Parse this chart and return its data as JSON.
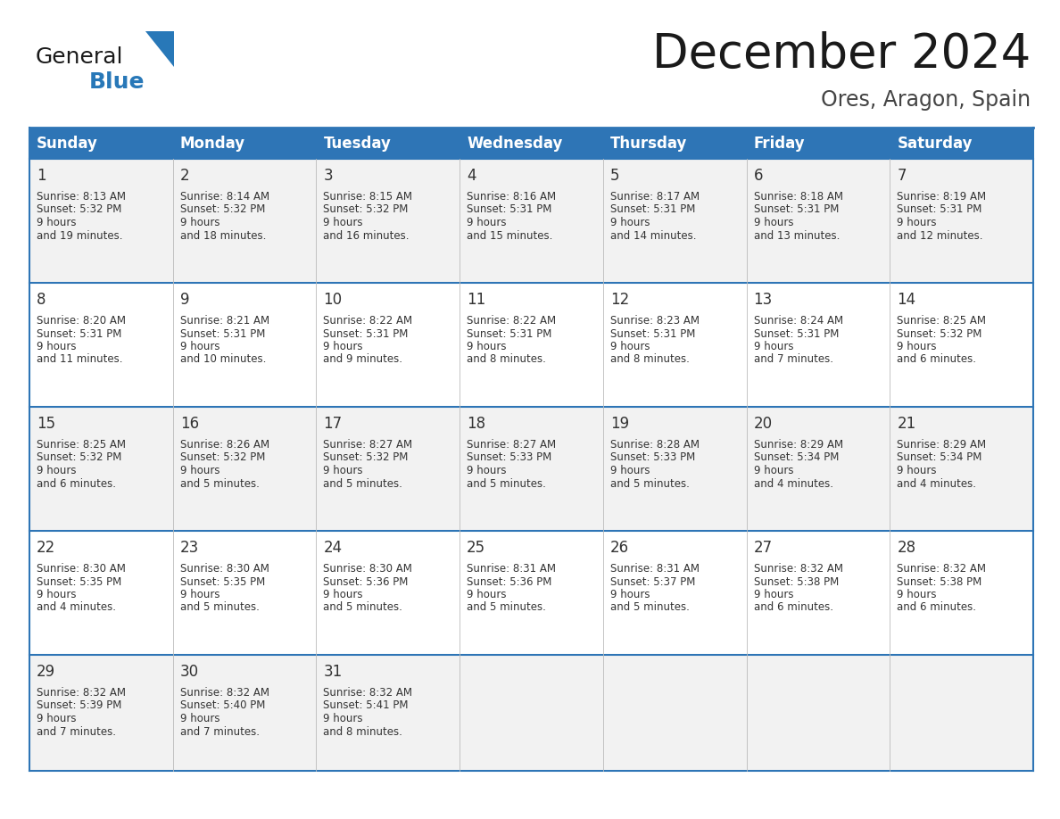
{
  "title": "December 2024",
  "subtitle": "Ores, Aragon, Spain",
  "days_of_week": [
    "Sunday",
    "Monday",
    "Tuesday",
    "Wednesday",
    "Thursday",
    "Friday",
    "Saturday"
  ],
  "header_bg": "#2E75B6",
  "header_text": "#FFFFFF",
  "cell_bg_white": "#FFFFFF",
  "cell_bg_gray": "#F2F2F2",
  "border_color": "#2E75B6",
  "border_light": "#BBBBBB",
  "text_color": "#222222",
  "calendar": [
    [
      {
        "day": 1,
        "sunrise": "8:13 AM",
        "sunset": "5:32 PM",
        "daylight": "9 hours and 19 minutes."
      },
      {
        "day": 2,
        "sunrise": "8:14 AM",
        "sunset": "5:32 PM",
        "daylight": "9 hours and 18 minutes."
      },
      {
        "day": 3,
        "sunrise": "8:15 AM",
        "sunset": "5:32 PM",
        "daylight": "9 hours and 16 minutes."
      },
      {
        "day": 4,
        "sunrise": "8:16 AM",
        "sunset": "5:31 PM",
        "daylight": "9 hours and 15 minutes."
      },
      {
        "day": 5,
        "sunrise": "8:17 AM",
        "sunset": "5:31 PM",
        "daylight": "9 hours and 14 minutes."
      },
      {
        "day": 6,
        "sunrise": "8:18 AM",
        "sunset": "5:31 PM",
        "daylight": "9 hours and 13 minutes."
      },
      {
        "day": 7,
        "sunrise": "8:19 AM",
        "sunset": "5:31 PM",
        "daylight": "9 hours and 12 minutes."
      }
    ],
    [
      {
        "day": 8,
        "sunrise": "8:20 AM",
        "sunset": "5:31 PM",
        "daylight": "9 hours and 11 minutes."
      },
      {
        "day": 9,
        "sunrise": "8:21 AM",
        "sunset": "5:31 PM",
        "daylight": "9 hours and 10 minutes."
      },
      {
        "day": 10,
        "sunrise": "8:22 AM",
        "sunset": "5:31 PM",
        "daylight": "9 hours and 9 minutes."
      },
      {
        "day": 11,
        "sunrise": "8:22 AM",
        "sunset": "5:31 PM",
        "daylight": "9 hours and 8 minutes."
      },
      {
        "day": 12,
        "sunrise": "8:23 AM",
        "sunset": "5:31 PM",
        "daylight": "9 hours and 8 minutes."
      },
      {
        "day": 13,
        "sunrise": "8:24 AM",
        "sunset": "5:31 PM",
        "daylight": "9 hours and 7 minutes."
      },
      {
        "day": 14,
        "sunrise": "8:25 AM",
        "sunset": "5:32 PM",
        "daylight": "9 hours and 6 minutes."
      }
    ],
    [
      {
        "day": 15,
        "sunrise": "8:25 AM",
        "sunset": "5:32 PM",
        "daylight": "9 hours and 6 minutes."
      },
      {
        "day": 16,
        "sunrise": "8:26 AM",
        "sunset": "5:32 PM",
        "daylight": "9 hours and 5 minutes."
      },
      {
        "day": 17,
        "sunrise": "8:27 AM",
        "sunset": "5:32 PM",
        "daylight": "9 hours and 5 minutes."
      },
      {
        "day": 18,
        "sunrise": "8:27 AM",
        "sunset": "5:33 PM",
        "daylight": "9 hours and 5 minutes."
      },
      {
        "day": 19,
        "sunrise": "8:28 AM",
        "sunset": "5:33 PM",
        "daylight": "9 hours and 5 minutes."
      },
      {
        "day": 20,
        "sunrise": "8:29 AM",
        "sunset": "5:34 PM",
        "daylight": "9 hours and 4 minutes."
      },
      {
        "day": 21,
        "sunrise": "8:29 AM",
        "sunset": "5:34 PM",
        "daylight": "9 hours and 4 minutes."
      }
    ],
    [
      {
        "day": 22,
        "sunrise": "8:30 AM",
        "sunset": "5:35 PM",
        "daylight": "9 hours and 4 minutes."
      },
      {
        "day": 23,
        "sunrise": "8:30 AM",
        "sunset": "5:35 PM",
        "daylight": "9 hours and 5 minutes."
      },
      {
        "day": 24,
        "sunrise": "8:30 AM",
        "sunset": "5:36 PM",
        "daylight": "9 hours and 5 minutes."
      },
      {
        "day": 25,
        "sunrise": "8:31 AM",
        "sunset": "5:36 PM",
        "daylight": "9 hours and 5 minutes."
      },
      {
        "day": 26,
        "sunrise": "8:31 AM",
        "sunset": "5:37 PM",
        "daylight": "9 hours and 5 minutes."
      },
      {
        "day": 27,
        "sunrise": "8:32 AM",
        "sunset": "5:38 PM",
        "daylight": "9 hours and 6 minutes."
      },
      {
        "day": 28,
        "sunrise": "8:32 AM",
        "sunset": "5:38 PM",
        "daylight": "9 hours and 6 minutes."
      }
    ],
    [
      {
        "day": 29,
        "sunrise": "8:32 AM",
        "sunset": "5:39 PM",
        "daylight": "9 hours and 7 minutes."
      },
      {
        "day": 30,
        "sunrise": "8:32 AM",
        "sunset": "5:40 PM",
        "daylight": "9 hours and 7 minutes."
      },
      {
        "day": 31,
        "sunrise": "8:32 AM",
        "sunset": "5:41 PM",
        "daylight": "9 hours and 8 minutes."
      },
      null,
      null,
      null,
      null
    ]
  ],
  "logo_general_color": "#1A1A1A",
  "logo_blue_color": "#2878B8",
  "logo_triangle_color": "#2878B8"
}
